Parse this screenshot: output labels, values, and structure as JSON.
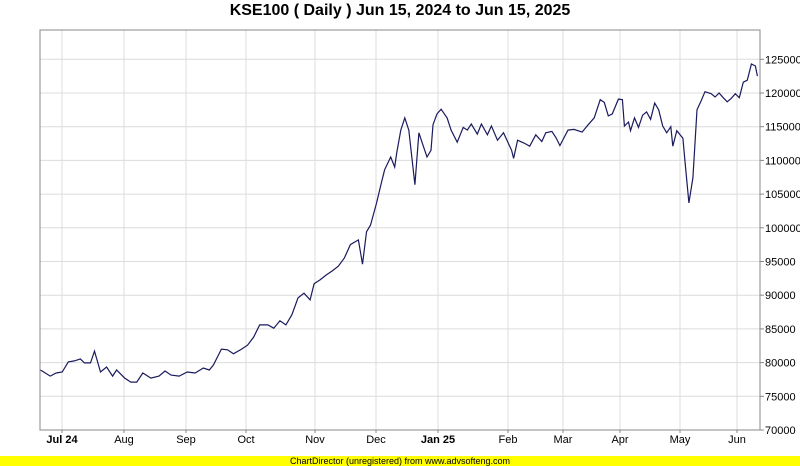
{
  "chart_data": {
    "type": "line",
    "title": "KSE100 ( Daily ) Jun 15, 2024 to Jun 15, 2025",
    "xlabel": "",
    "ylabel": "",
    "ylim": [
      70000,
      127500
    ],
    "grid": true,
    "y_axis_side": "right",
    "line_color": "#1a1a5e",
    "y_ticks": [
      "70000",
      "75000",
      "80000",
      "85000",
      "90000",
      "95000",
      "100000",
      "105000",
      "110000",
      "115000",
      "120000",
      "125000"
    ],
    "x_ticks": [
      {
        "label": "Jul 24",
        "bold": true
      },
      {
        "label": "Aug",
        "bold": false
      },
      {
        "label": "Sep",
        "bold": false
      },
      {
        "label": "Oct",
        "bold": false
      },
      {
        "label": "Nov",
        "bold": false
      },
      {
        "label": "Dec",
        "bold": false
      },
      {
        "label": "Jan 25",
        "bold": true
      },
      {
        "label": "Feb",
        "bold": false
      },
      {
        "label": "Mar",
        "bold": false
      },
      {
        "label": "Apr",
        "bold": false
      },
      {
        "label": "May",
        "bold": false
      },
      {
        "label": "Jun",
        "bold": false
      }
    ],
    "series": [
      {
        "points": [
          [
            "2024-06-20",
            78900
          ],
          [
            "2024-06-21",
            78750
          ],
          [
            "2024-06-25",
            78000
          ],
          [
            "2024-06-28",
            78450
          ],
          [
            "2024-07-01",
            78600
          ],
          [
            "2024-07-04",
            80100
          ],
          [
            "2024-07-07",
            80250
          ],
          [
            "2024-07-10",
            80550
          ],
          [
            "2024-07-12",
            79950
          ],
          [
            "2024-07-15",
            79950
          ],
          [
            "2024-07-17",
            81700
          ],
          [
            "2024-07-20",
            78600
          ],
          [
            "2024-07-23",
            79350
          ],
          [
            "2024-07-26",
            78000
          ],
          [
            "2024-07-28",
            78900
          ],
          [
            "2024-08-01",
            77700
          ],
          [
            "2024-08-04",
            77100
          ],
          [
            "2024-08-07",
            77100
          ],
          [
            "2024-08-10",
            78450
          ],
          [
            "2024-08-14",
            77700
          ],
          [
            "2024-08-18",
            78000
          ],
          [
            "2024-08-21",
            78750
          ],
          [
            "2024-08-24",
            78150
          ],
          [
            "2024-08-28",
            78000
          ],
          [
            "2024-09-01",
            78600
          ],
          [
            "2024-09-05",
            78450
          ],
          [
            "2024-09-09",
            79200
          ],
          [
            "2024-09-12",
            78900
          ],
          [
            "2024-09-14",
            79650
          ],
          [
            "2024-09-18",
            82000
          ],
          [
            "2024-09-21",
            81900
          ],
          [
            "2024-09-24",
            81300
          ],
          [
            "2024-09-28",
            82000
          ],
          [
            "2024-10-01",
            82600
          ],
          [
            "2024-10-04",
            83800
          ],
          [
            "2024-10-07",
            85600
          ],
          [
            "2024-10-11",
            85600
          ],
          [
            "2024-10-14",
            85100
          ],
          [
            "2024-10-17",
            86200
          ],
          [
            "2024-10-20",
            85600
          ],
          [
            "2024-10-23",
            87100
          ],
          [
            "2024-10-26",
            89600
          ],
          [
            "2024-10-29",
            90300
          ],
          [
            "2024-11-01",
            89300
          ],
          [
            "2024-11-03",
            91700
          ],
          [
            "2024-11-06",
            92300
          ],
          [
            "2024-11-09",
            93000
          ],
          [
            "2024-11-12",
            93600
          ],
          [
            "2024-11-15",
            94300
          ],
          [
            "2024-11-18",
            95500
          ],
          [
            "2024-11-21",
            97500
          ],
          [
            "2024-11-25",
            98200
          ],
          [
            "2024-11-27",
            94600
          ],
          [
            "2024-11-29",
            99400
          ],
          [
            "2024-12-01",
            100400
          ],
          [
            "2024-12-04",
            103700
          ],
          [
            "2024-12-06",
            106200
          ],
          [
            "2024-12-08",
            108600
          ],
          [
            "2024-12-11",
            110500
          ],
          [
            "2024-12-13",
            109000
          ],
          [
            "2024-12-14",
            111100
          ],
          [
            "2024-12-16",
            114500
          ],
          [
            "2024-12-18",
            116300
          ],
          [
            "2024-12-20",
            114500
          ],
          [
            "2024-12-23",
            106400
          ],
          [
            "2024-12-25",
            114100
          ],
          [
            "2024-12-27",
            112300
          ],
          [
            "2024-12-29",
            110500
          ],
          [
            "2024-12-31",
            111500
          ],
          [
            "2025-01-01",
            115300
          ],
          [
            "2025-01-03",
            116900
          ],
          [
            "2025-01-05",
            117600
          ],
          [
            "2025-01-08",
            116300
          ],
          [
            "2025-01-10",
            114500
          ],
          [
            "2025-01-13",
            112700
          ],
          [
            "2025-01-16",
            114900
          ],
          [
            "2025-01-18",
            114500
          ],
          [
            "2025-01-20",
            115400
          ],
          [
            "2025-01-23",
            113900
          ],
          [
            "2025-01-25",
            115400
          ],
          [
            "2025-01-28",
            113800
          ],
          [
            "2025-01-30",
            115100
          ],
          [
            "2025-02-02",
            113000
          ],
          [
            "2025-02-05",
            114100
          ],
          [
            "2025-02-09",
            111500
          ],
          [
            "2025-02-10",
            110300
          ],
          [
            "2025-02-12",
            113000
          ],
          [
            "2025-02-15",
            112600
          ],
          [
            "2025-02-18",
            112100
          ],
          [
            "2025-02-21",
            113800
          ],
          [
            "2025-02-24",
            112800
          ],
          [
            "2025-02-26",
            114100
          ],
          [
            "2025-03-01",
            114300
          ],
          [
            "2025-03-03",
            113400
          ],
          [
            "2025-03-05",
            112200
          ],
          [
            "2025-03-09",
            114500
          ],
          [
            "2025-03-12",
            114600
          ],
          [
            "2025-03-16",
            114200
          ],
          [
            "2025-03-19",
            115300
          ],
          [
            "2025-03-22",
            116300
          ],
          [
            "2025-03-25",
            119000
          ],
          [
            "2025-03-27",
            118600
          ],
          [
            "2025-03-29",
            116600
          ],
          [
            "2025-03-31",
            116900
          ],
          [
            "2025-04-03",
            119100
          ],
          [
            "2025-04-05",
            119000
          ],
          [
            "2025-04-06",
            115100
          ],
          [
            "2025-04-08",
            115700
          ],
          [
            "2025-04-09",
            114400
          ],
          [
            "2025-04-11",
            116300
          ],
          [
            "2025-04-13",
            114900
          ],
          [
            "2025-04-15",
            116700
          ],
          [
            "2025-04-17",
            117200
          ],
          [
            "2025-04-19",
            116100
          ],
          [
            "2025-04-21",
            118500
          ],
          [
            "2025-04-23",
            117500
          ],
          [
            "2025-04-25",
            115100
          ],
          [
            "2025-04-27",
            114100
          ],
          [
            "2025-04-29",
            115000
          ],
          [
            "2025-04-30",
            112100
          ],
          [
            "2025-05-02",
            114400
          ],
          [
            "2025-05-05",
            113300
          ],
          [
            "2025-05-06",
            110000
          ],
          [
            "2025-05-08",
            103700
          ],
          [
            "2025-05-10",
            107400
          ],
          [
            "2025-05-12",
            117500
          ],
          [
            "2025-05-14",
            118800
          ],
          [
            "2025-05-16",
            120200
          ],
          [
            "2025-05-19",
            119900
          ],
          [
            "2025-05-21",
            119400
          ],
          [
            "2025-05-23",
            120000
          ],
          [
            "2025-05-25",
            119300
          ],
          [
            "2025-05-27",
            118700
          ],
          [
            "2025-05-29",
            119200
          ],
          [
            "2025-05-31",
            119900
          ],
          [
            "2025-06-02",
            119300
          ],
          [
            "2025-06-04",
            121600
          ],
          [
            "2025-06-06",
            121900
          ],
          [
            "2025-06-08",
            124300
          ],
          [
            "2025-06-10",
            124000
          ],
          [
            "2025-06-11",
            122500
          ]
        ]
      }
    ]
  },
  "footer": "ChartDirector (unregistered) from www.advsofteng.com"
}
